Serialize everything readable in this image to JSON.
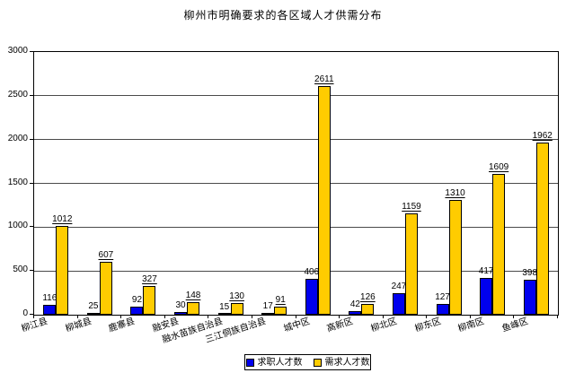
{
  "page": {
    "title": "柳州市明确要求的各区域人才供需分布"
  },
  "chart_data": {
    "type": "bar",
    "title": "柳州市明确要求的各区域人才供需分布",
    "categories": [
      "柳江县",
      "柳城县",
      "鹿寨县",
      "融安县",
      "融水苗族自治县",
      "三江侗族自治县",
      "城中区",
      "高新区",
      "柳北区",
      "柳东区",
      "柳南区",
      "鱼峰区"
    ],
    "series": [
      {
        "name": "求职人才数",
        "color": "#0000EE",
        "data_label_underline": false,
        "values": [
          116,
          25,
          92,
          30,
          15,
          17,
          406,
          42,
          247,
          127,
          417,
          398
        ]
      },
      {
        "name": "需求人才数",
        "color": "#FFCC00",
        "data_label_underline": true,
        "values": [
          1012,
          607,
          327,
          148,
          130,
          91,
          2611,
          126,
          1159,
          1310,
          1609,
          1962
        ]
      }
    ],
    "ylim": [
      0,
      3000
    ],
    "yticks": [
      0,
      500,
      1000,
      1500,
      2000,
      2500,
      3000
    ],
    "grid": true,
    "legend_position": "bottom",
    "plot_border_color": "#000000",
    "gridline_color": "#4a4a4a",
    "background_color": "#ffffff"
  }
}
